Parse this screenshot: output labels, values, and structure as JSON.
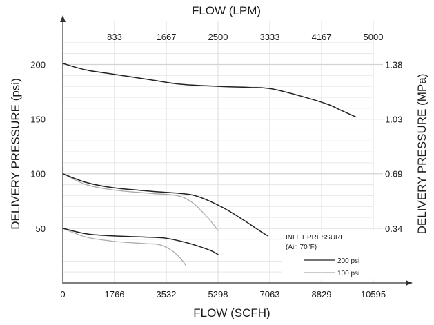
{
  "chart_data": {
    "type": "line",
    "xlabel_bottom": "FLOW (SCFH)",
    "xlabel_top": "FLOW (LPM)",
    "ylabel_left": "DELIVERY PRESSURE (psi)",
    "ylabel_right": "DELIVERY PRESSURE (MPa)",
    "x_ticks_bottom": [
      "0",
      "1766",
      "3532",
      "5298",
      "7063",
      "8829",
      "10595"
    ],
    "x_ticks_top": [
      "833",
      "1667",
      "2500",
      "3333",
      "4167",
      "5000"
    ],
    "y_ticks_left": [
      "50",
      "100",
      "150",
      "200"
    ],
    "y_ticks_right": [
      "0.34",
      "0.69",
      "1.03",
      "1.38"
    ],
    "xlim": [
      0,
      10595
    ],
    "ylim": [
      0,
      230
    ],
    "grid": true,
    "legend": {
      "title_line1": "INLET PRESSURE",
      "title_line2": "(Air, 70°F)",
      "items": [
        {
          "label": "200 psi",
          "color": "#222222"
        },
        {
          "label": "100 psi",
          "color": "#aaaaaa"
        }
      ],
      "placement": "bottom-right"
    },
    "series": [
      {
        "name": "200 psi",
        "color": "#222222",
        "x": [
          0,
          800,
          1766,
          3000,
          4000,
          5298,
          6400,
          7063,
          8000,
          9000,
          9500,
          10000
        ],
        "y": [
          201,
          195,
          191,
          186,
          182,
          180,
          179,
          178,
          172,
          164,
          158,
          152
        ]
      },
      {
        "name": "200 psi",
        "color": "#222222",
        "x": [
          0,
          800,
          1766,
          3000,
          4000,
          4500,
          5000,
          5600,
          6200,
          6700,
          7000
        ],
        "y": [
          100,
          92,
          87,
          84,
          82,
          80,
          75,
          67,
          57,
          48,
          43
        ]
      },
      {
        "name": "200 psi",
        "color": "#222222",
        "x": [
          0,
          800,
          1766,
          2800,
          3500,
          4200,
          4700,
          5100,
          5298
        ],
        "y": [
          50,
          45,
          43,
          42,
          41,
          37,
          33,
          29,
          26
        ]
      },
      {
        "name": "100 psi",
        "color": "#aaaaaa",
        "x": [
          0,
          800,
          1766,
          3000,
          3900,
          4400,
          4800,
          5100,
          5298
        ],
        "y": [
          100,
          90,
          85,
          82,
          80,
          74,
          64,
          55,
          48
        ]
      },
      {
        "name": "100 psi",
        "color": "#aaaaaa",
        "x": [
          0,
          800,
          1766,
          2800,
          3300,
          3700,
          4000,
          4200
        ],
        "y": [
          50,
          42,
          38,
          36,
          35,
          30,
          23,
          16
        ]
      }
    ]
  }
}
